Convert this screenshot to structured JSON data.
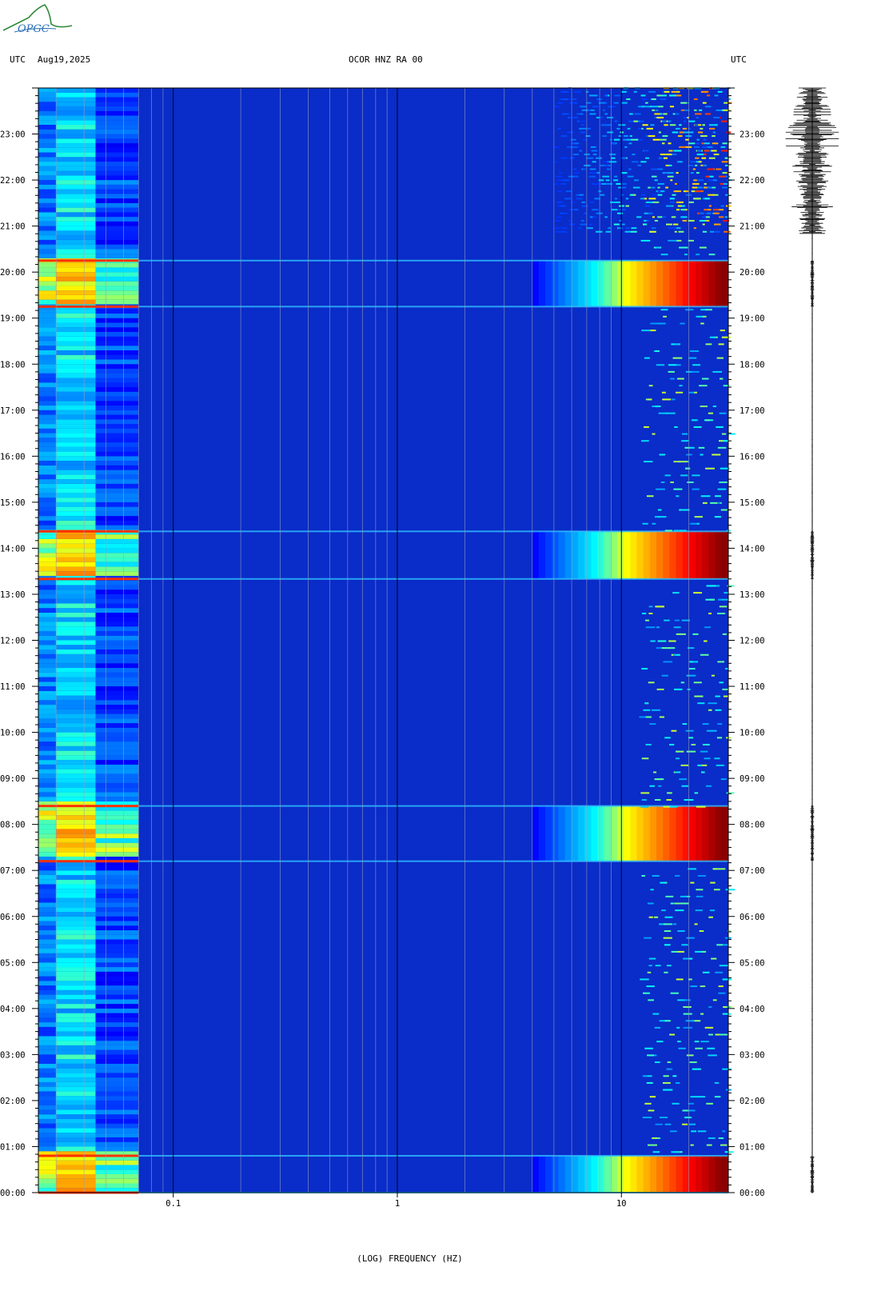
{
  "header": {
    "left_utc": "UTC",
    "date": "Aug19,2025",
    "station": "OCOR HNZ RA 00",
    "right_utc": "UTC"
  },
  "logo": {
    "text": "OPGC",
    "color": "#2a6fb5"
  },
  "chart_data": {
    "type": "heatmap",
    "title": "OCOR HNZ RA 00",
    "xlabel": "(LOG) FREQUENCY (HZ)",
    "ylabel": "UTC",
    "x_scale": "log",
    "xlim": [
      0.025,
      30
    ],
    "x_ticks": [
      {
        "value": 0.1,
        "label": "0.1"
      },
      {
        "value": 1,
        "label": "1"
      },
      {
        "value": 10,
        "label": "10"
      }
    ],
    "y_range_hours": [
      0,
      24
    ],
    "y_ticks": [
      "00:00",
      "01:00",
      "02:00",
      "03:00",
      "04:00",
      "05:00",
      "06:00",
      "07:00",
      "08:00",
      "09:00",
      "10:00",
      "11:00",
      "12:00",
      "13:00",
      "14:00",
      "15:00",
      "16:00",
      "17:00",
      "18:00",
      "19:00",
      "20:00",
      "21:00",
      "22:00",
      "23:00"
    ],
    "colormap": [
      "#00008b",
      "#0000ff",
      "#0080ff",
      "#00ffff",
      "#ffff00",
      "#ff8000",
      "#ff0000",
      "#8b0000"
    ],
    "background_color": "#0a2cc8",
    "high_energy_bursts": [
      {
        "start": "00:00",
        "end": "00:48"
      },
      {
        "start": "07:12",
        "end": "08:24"
      },
      {
        "start": "13:20",
        "end": "14:22"
      },
      {
        "start": "19:15",
        "end": "20:15"
      }
    ],
    "noise_period_start": "20:50",
    "seismogram_trace": true
  }
}
